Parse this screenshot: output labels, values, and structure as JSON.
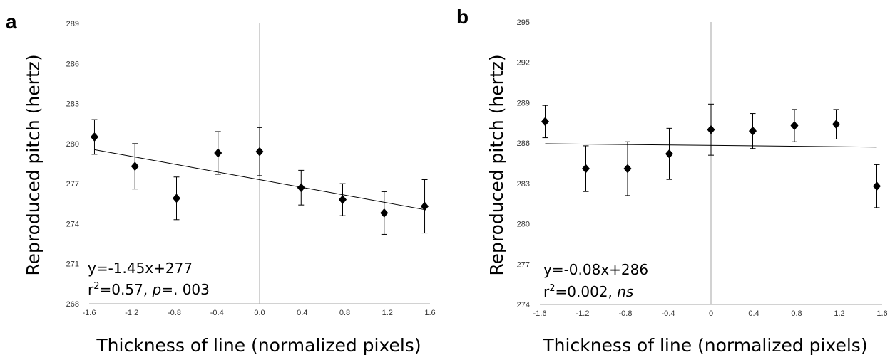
{
  "chart_data": [
    {
      "type": "scatter",
      "panel_label": "a",
      "xlabel": "Thickness of line (normalized pixels)",
      "ylabel": "Reproduced pitch (hertz)",
      "xlim": [
        -1.6,
        1.6
      ],
      "ylim": [
        268,
        289
      ],
      "x_ticks": [
        "-1.6",
        "-1.2",
        "-0.8",
        "-0.4",
        "0.0",
        "0.4",
        "0.8",
        "1.2",
        "1.6"
      ],
      "y_ticks": [
        "268",
        "271",
        "274",
        "277",
        "280",
        "283",
        "286",
        "289"
      ],
      "points": [
        {
          "x": -1.55,
          "y": 280.5,
          "err": 1.3
        },
        {
          "x": -1.17,
          "y": 278.3,
          "err": 1.7
        },
        {
          "x": -0.78,
          "y": 275.9,
          "err": 1.6
        },
        {
          "x": -0.39,
          "y": 279.3,
          "err": 1.6
        },
        {
          "x": 0.0,
          "y": 279.4,
          "err": 1.8
        },
        {
          "x": 0.39,
          "y": 276.7,
          "err": 1.3
        },
        {
          "x": 0.78,
          "y": 275.8,
          "err": 1.2
        },
        {
          "x": 1.17,
          "y": 274.8,
          "err": 1.6
        },
        {
          "x": 1.55,
          "y": 275.3,
          "err": 2.0
        }
      ],
      "trendline": {
        "slope": -1.45,
        "intercept": 277.3
      },
      "equation": "y=-1.45x+277",
      "stats": {
        "r_prefix": "r",
        "r_exp": "2",
        "r_value": "=0.57, ",
        "p_label": "p",
        "p_value": "=. 003"
      }
    },
    {
      "type": "scatter",
      "panel_label": "b",
      "xlabel": "Thickness of line (normalized pixels)",
      "ylabel": "Reproduced pitch (hertz)",
      "xlim": [
        -1.6,
        1.6
      ],
      "ylim": [
        274,
        295
      ],
      "x_ticks": [
        "-1.6",
        "-1.2",
        "-0.8",
        "-0.4",
        "0",
        "0.4",
        "0.8",
        "1.2",
        "1.6"
      ],
      "y_ticks": [
        "274",
        "277",
        "280",
        "283",
        "286",
        "289",
        "292",
        "295"
      ],
      "points": [
        {
          "x": -1.55,
          "y": 287.6,
          "err": 1.2
        },
        {
          "x": -1.17,
          "y": 284.1,
          "err": 1.7
        },
        {
          "x": -0.78,
          "y": 284.1,
          "err": 2.0
        },
        {
          "x": -0.39,
          "y": 285.2,
          "err": 1.9
        },
        {
          "x": 0.0,
          "y": 287.0,
          "err": 1.9
        },
        {
          "x": 0.39,
          "y": 286.9,
          "err": 1.3
        },
        {
          "x": 0.78,
          "y": 287.3,
          "err": 1.2
        },
        {
          "x": 1.17,
          "y": 287.4,
          "err": 1.1
        },
        {
          "x": 1.55,
          "y": 282.8,
          "err": 1.6
        }
      ],
      "trendline": {
        "slope": -0.08,
        "intercept": 285.83
      },
      "equation": "y=-0.08x+286",
      "stats": {
        "r_prefix": "r",
        "r_exp": "2",
        "r_value": "=0.002, ",
        "p_label": "ns",
        "p_value": ""
      }
    }
  ]
}
